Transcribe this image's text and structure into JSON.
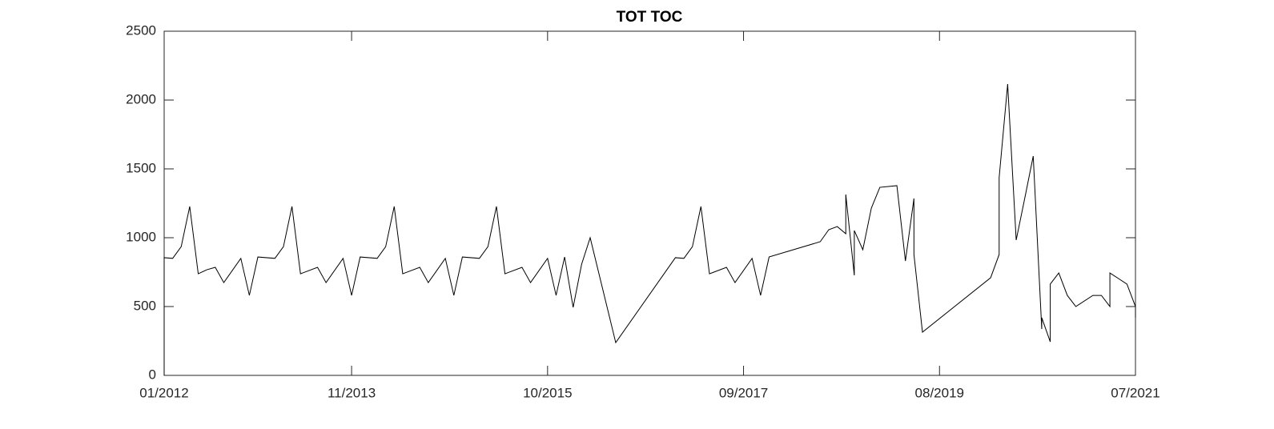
{
  "chart_data": {
    "type": "line",
    "title": "TOT TOC",
    "x": [
      "2012-01",
      "2012-01",
      "2012-02",
      "2012-03",
      "2012-04",
      "2012-05",
      "2012-06",
      "2012-07",
      "2012-08",
      "2012-10",
      "2012-11",
      "2012-12",
      "2013-02",
      "2013-03",
      "2013-04",
      "2013-05",
      "2013-07",
      "2013-08",
      "2013-10",
      "2013-11",
      "2013-12",
      "2014-02",
      "2014-03",
      "2014-04",
      "2014-05",
      "2014-07",
      "2014-08",
      "2014-10",
      "2014-11",
      "2014-12",
      "2015-02",
      "2015-03",
      "2015-04",
      "2015-05",
      "2015-07",
      "2015-08",
      "2015-10",
      "2015-11",
      "2015-12",
      "2016-01",
      "2016-02",
      "2016-03",
      "2016-06",
      "2017-01",
      "2017-02",
      "2017-03",
      "2017-04",
      "2017-05",
      "2017-07",
      "2017-08",
      "2017-10",
      "2017-11",
      "2017-12",
      "2018-06",
      "2018-07",
      "2018-08",
      "2018-09",
      "2018-09",
      "2018-10",
      "2018-10",
      "2018-11",
      "2018-12",
      "2019-01",
      "2019-03",
      "2019-04",
      "2019-05",
      "2019-05",
      "2019-06",
      "2020-02",
      "2020-03",
      "2020-03",
      "2020-04",
      "2020-05",
      "2020-06",
      "2020-07",
      "2020-08",
      "2020-08",
      "2020-09",
      "2020-09",
      "2020-10",
      "2020-11",
      "2020-11",
      "2020-12",
      "2021-02",
      "2021-03",
      "2021-04",
      "2021-04",
      "2021-06",
      "2021-07",
      "2021-07"
    ],
    "series": [
      {
        "color": "#000000",
        "values": [
          0,
          855,
          850,
          935,
          1227,
          738,
          767,
          785,
          674,
          850,
          581,
          860,
          850,
          935,
          1227,
          738,
          785,
          674,
          850,
          581,
          860,
          850,
          935,
          1227,
          738,
          785,
          674,
          850,
          581,
          860,
          850,
          935,
          1227,
          738,
          785,
          674,
          850,
          581,
          860,
          494,
          808,
          1000,
          238,
          855,
          850,
          935,
          1227,
          738,
          785,
          674,
          850,
          581,
          860,
          971,
          1058,
          1081,
          1029,
          1314,
          727,
          1052,
          913,
          1215,
          1366,
          1378,
          831,
          1285,
          878,
          314,
          709,
          878,
          1436,
          2116,
          983,
          1285,
          1593,
          337,
          419,
          244,
          663,
          744,
          581,
          581,
          500,
          581,
          581,
          500,
          744,
          663,
          500,
          419
        ]
      }
    ],
    "xlim": [
      "2012-01",
      "2021-07"
    ],
    "xticks": [
      {
        "value": "2012-01",
        "label": "01/2012"
      },
      {
        "value": "2013-11",
        "label": "11/2013"
      },
      {
        "value": "2015-10",
        "label": "10/2015"
      },
      {
        "value": "2017-09",
        "label": "09/2017"
      },
      {
        "value": "2019-08",
        "label": "08/2019"
      },
      {
        "value": "2021-07",
        "label": "07/2021"
      }
    ],
    "ylim": [
      0,
      2500
    ],
    "yticks": [
      0,
      500,
      1000,
      1500,
      2000,
      2500
    ],
    "grid": false
  }
}
